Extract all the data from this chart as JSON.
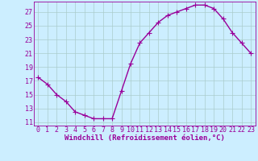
{
  "x": [
    0,
    1,
    2,
    3,
    4,
    5,
    6,
    7,
    8,
    9,
    10,
    11,
    12,
    13,
    14,
    15,
    16,
    17,
    18,
    19,
    20,
    21,
    22,
    23
  ],
  "y": [
    17.5,
    16.5,
    15.0,
    14.0,
    12.5,
    12.0,
    11.5,
    11.5,
    11.5,
    15.5,
    19.5,
    22.5,
    24.0,
    25.5,
    26.5,
    27.0,
    27.5,
    28.0,
    28.0,
    27.5,
    26.0,
    24.0,
    22.5,
    21.0
  ],
  "line_color": "#990099",
  "marker": "+",
  "marker_size": 4,
  "background_color": "#cceeff",
  "grid_color": "#aacccc",
  "xlabel": "Windchill (Refroidissement éolien,°C)",
  "xlabel_fontsize": 6.5,
  "tick_fontsize": 6.0,
  "ylim": [
    10.5,
    28.5
  ],
  "yticks": [
    11,
    13,
    15,
    17,
    19,
    21,
    23,
    25,
    27
  ],
  "xlim": [
    -0.5,
    23.5
  ],
  "xticks": [
    0,
    1,
    2,
    3,
    4,
    5,
    6,
    7,
    8,
    9,
    10,
    11,
    12,
    13,
    14,
    15,
    16,
    17,
    18,
    19,
    20,
    21,
    22,
    23
  ],
  "line_width": 1.0
}
